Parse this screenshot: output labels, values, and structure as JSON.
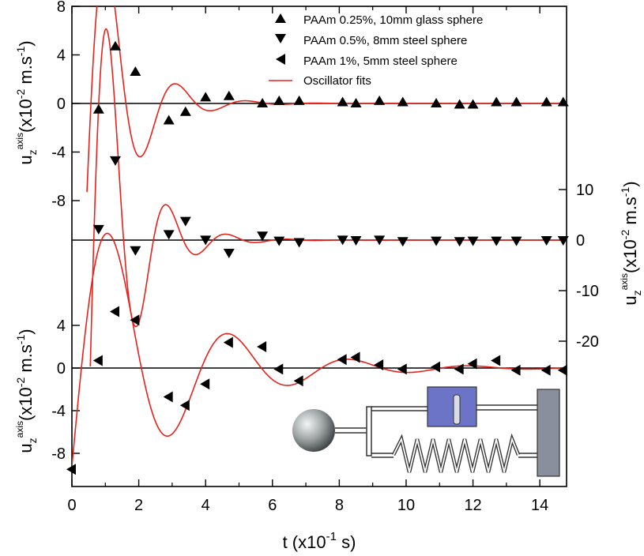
{
  "chart_data": {
    "type": "scatter",
    "xlabel": "t (x10",
    "xlabel_sup": "-1",
    "xlabel_end": " s)",
    "x_ticks": [
      "0",
      "2",
      "4",
      "6",
      "8",
      "10",
      "12",
      "14"
    ],
    "xlim": [
      0,
      14.8
    ],
    "fit_color": "#e8211a",
    "legend": {
      "placement": "top-right",
      "entries": [
        {
          "marker": "triangle-up",
          "label": "PAAm 0.25%, 10mm glass sphere"
        },
        {
          "marker": "triangle-down",
          "label": "PAAm 0.5%, 8mm steel sphere"
        },
        {
          "marker": "triangle-left",
          "label": "PAAm 1%, 5mm steel sphere"
        },
        {
          "marker": "line",
          "label": "Oscillator fits"
        }
      ]
    },
    "ylabel_left": {
      "main": "u",
      "sub": "z",
      "sup": "axis",
      "unit_pre": "(x10",
      "unit_sup": "-2",
      "unit_mid": " m.s",
      "unit_sup2": "-1",
      "unit_end": ")"
    },
    "ylabel_right": {
      "main": "u",
      "sub": "z",
      "sup": "axis",
      "unit_pre": "(x10",
      "unit_sup": "-2",
      "unit_mid": " m.s",
      "unit_sup2": "-1",
      "unit_end": ")"
    },
    "panels": [
      {
        "series": "PAAm 0.25%, 10mm glass sphere",
        "axis": "left",
        "ylim": [
          -9.2,
          8
        ],
        "y_ticks": [
          "8",
          "4",
          "0",
          "-4",
          "-8"
        ],
        "y_tick_values": [
          8,
          4,
          0,
          -4,
          -8
        ],
        "marker": "triangle-up",
        "points": [
          [
            0.8,
            -0.5
          ],
          [
            1.3,
            4.7
          ],
          [
            1.9,
            2.6
          ],
          [
            2.9,
            -1.4
          ],
          [
            3.4,
            -0.7
          ],
          [
            4.0,
            0.5
          ],
          [
            4.7,
            0.6
          ],
          [
            5.7,
            0.0
          ],
          [
            6.2,
            0.2
          ],
          [
            6.8,
            0.2
          ],
          [
            8.1,
            0.1
          ],
          [
            8.5,
            0.0
          ],
          [
            9.2,
            0.2
          ],
          [
            9.9,
            0.1
          ],
          [
            10.9,
            0.0
          ],
          [
            11.6,
            -0.1
          ],
          [
            12.0,
            -0.1
          ],
          [
            12.7,
            0.1
          ],
          [
            13.3,
            0.1
          ],
          [
            14.2,
            0.1
          ],
          [
            14.7,
            0.1
          ]
        ],
        "fit": {
          "t0": 0.45,
          "a": -7.3,
          "b": 19.5,
          "lambda": 0.95,
          "omega": 3.0,
          "t_end": 14.8
        }
      },
      {
        "series": "PAAm 0.5%, 8mm steel sphere",
        "axis": "right",
        "ylim": [
          -26,
          16
        ],
        "y_ticks": [
          "10",
          "0",
          "-10",
          "-20"
        ],
        "y_tick_values": [
          10,
          0,
          -10,
          -20
        ],
        "marker": "triangle-down",
        "points": [
          [
            0.8,
            2.2
          ],
          [
            1.3,
            15.8
          ],
          [
            1.9,
            -2.0
          ],
          [
            2.9,
            1.2
          ],
          [
            3.4,
            3.8
          ],
          [
            4.0,
            0.1
          ],
          [
            4.7,
            -2.5
          ],
          [
            5.7,
            0.9
          ],
          [
            6.2,
            -0.1
          ],
          [
            6.8,
            -0.4
          ],
          [
            8.1,
            0.1
          ],
          [
            8.5,
            0.0
          ],
          [
            9.2,
            0.1
          ],
          [
            9.9,
            -0.2
          ],
          [
            10.9,
            -0.1
          ],
          [
            11.6,
            -0.2
          ],
          [
            12.0,
            -0.1
          ],
          [
            12.7,
            -0.1
          ],
          [
            13.3,
            -0.1
          ],
          [
            14.2,
            0.0
          ],
          [
            14.7,
            0.0
          ]
        ],
        "fit": {
          "t0": 0.55,
          "a": -25.0,
          "b": 65.0,
          "lambda": 1.0,
          "omega": 3.52,
          "t_end": 14.8
        }
      },
      {
        "series": "PAAm 1%, 5mm steel sphere",
        "axis": "left",
        "ylim": [
          -10.5,
          6.5
        ],
        "y_ticks": [
          "4",
          "0",
          "-4",
          "-8"
        ],
        "y_tick_values": [
          4,
          0,
          -4,
          -8
        ],
        "marker": "triangle-left",
        "points": [
          [
            0,
            -9.5
          ],
          [
            0.8,
            0.7
          ],
          [
            1.3,
            5.3
          ],
          [
            1.9,
            4.5
          ],
          [
            2.9,
            -2.7
          ],
          [
            3.4,
            -3.5
          ],
          [
            4.0,
            -1.5
          ],
          [
            4.7,
            2.4
          ],
          [
            5.7,
            2.0
          ],
          [
            6.2,
            -0.1
          ],
          [
            6.8,
            -1.2
          ],
          [
            8.1,
            0.8
          ],
          [
            8.5,
            1.0
          ],
          [
            9.2,
            0.3
          ],
          [
            9.9,
            -0.1
          ],
          [
            10.9,
            0.1
          ],
          [
            11.6,
            -0.1
          ],
          [
            12.0,
            0.4
          ],
          [
            12.7,
            0.7
          ],
          [
            13.3,
            -0.2
          ],
          [
            14.2,
            -0.2
          ],
          [
            14.7,
            -0.2
          ]
        ],
        "fit": {
          "t0": 0.0,
          "a": -9.2,
          "b": 17.0,
          "lambda": 0.38,
          "omega": 1.75,
          "t_end": 14.8
        }
      }
    ]
  },
  "inset": {
    "description": "sphere connected to dashpot and spring attached to wall",
    "sphere_color": "#9aa0a0",
    "dashpot_color": "#6b74c6",
    "wall_color": "#8a8f9e"
  }
}
